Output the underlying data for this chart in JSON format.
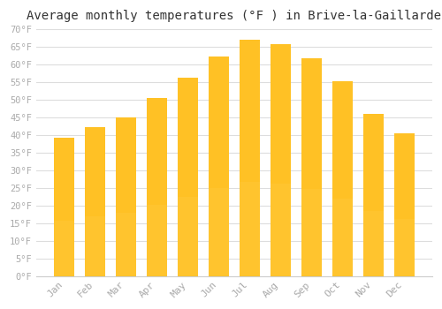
{
  "months": [
    "Jan",
    "Feb",
    "Mar",
    "Apr",
    "May",
    "Jun",
    "Jul",
    "Aug",
    "Sep",
    "Oct",
    "Nov",
    "Dec"
  ],
  "values": [
    39.2,
    42.3,
    45.1,
    50.4,
    56.3,
    62.4,
    67.1,
    65.8,
    61.9,
    55.2,
    46.0,
    40.5
  ],
  "bar_color_top": "#FFC125",
  "bar_color_bottom": "#FFD966",
  "title": "Average monthly temperatures (°F ) in Brive-la-Gaillarde",
  "title_fontsize": 10,
  "ylabel": "",
  "xlabel": "",
  "ylim": [
    0,
    70
  ],
  "ytick_step": 5,
  "background_color": "#ffffff",
  "grid_color": "#dddddd",
  "tick_label_color": "#aaaaaa",
  "font_family": "monospace"
}
